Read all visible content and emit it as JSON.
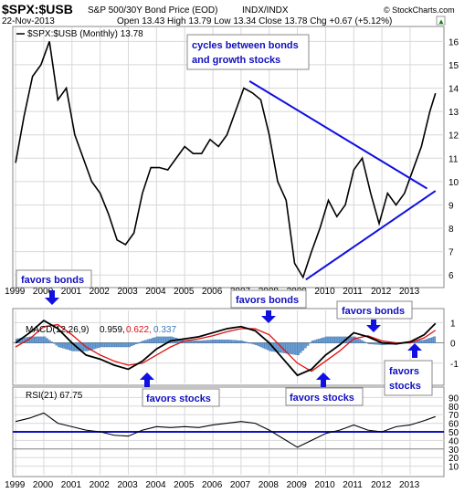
{
  "header": {
    "symbol": "$SPX:$USB",
    "description": "S&P 500/30Y Bond Price (EOD)",
    "exchange": "INDX/INDX",
    "date": "22-Nov-2013",
    "ohlc": "Open 13.43  High 13.79  Low 13.34  Close 13.78  Chg +0.67 (+5.12%)",
    "credit": "© StockCharts.com",
    "arrow": "▲"
  },
  "legends": {
    "price": "$SPX:$USB (Monthly) 13.78",
    "macd_label": "MACD(12,26,9)",
    "macd_v1": "0.959,",
    "macd_v2": "0.622,",
    "macd_v3": "0.337",
    "rsi": "RSI(21) 67.75"
  },
  "annotations": {
    "cycles": [
      "cycles between bonds",
      "and growth stocks"
    ],
    "favors_bonds_1": "favors bonds",
    "favors_bonds_2": "favors bonds",
    "favors_bonds_3": "favors bonds",
    "favors_stocks_1": "favors stocks",
    "favors_stocks_2": "favors stocks",
    "favors_stocks_3": [
      "favors",
      "stocks"
    ]
  },
  "colors": {
    "price": "#000000",
    "trendline": "#1010e0",
    "macd_signal": "#e01010",
    "histogram": "#6aa0d8",
    "rsi_line": "#1010c0",
    "grid": "#d8d8d8",
    "annotation_text": "#1010c0"
  },
  "chart_data": [
    {
      "type": "line",
      "title": "$SPX:$USB (Monthly) 13.78",
      "x": [
        "1999.0",
        "1999.3",
        "1999.6",
        "1999.9",
        "2000.2",
        "2000.5",
        "2000.8",
        "2001.1",
        "2001.4",
        "2001.7",
        "2002.0",
        "2002.3",
        "2002.6",
        "2002.9",
        "2003.2",
        "2003.5",
        "2003.8",
        "2004.1",
        "2004.4",
        "2004.7",
        "2005.0",
        "2005.3",
        "2005.6",
        "2005.9",
        "2006.2",
        "2006.5",
        "2006.8",
        "2007.1",
        "2007.4",
        "2007.7",
        "2008.0",
        "2008.3",
        "2008.6",
        "2008.9",
        "2009.2",
        "2009.5",
        "2009.8",
        "2010.1",
        "2010.4",
        "2010.7",
        "2011.0",
        "2011.3",
        "2011.6",
        "2011.9",
        "2012.2",
        "2012.5",
        "2012.8",
        "2013.1",
        "2013.4",
        "2013.7",
        "2013.9"
      ],
      "y": [
        10.8,
        12.8,
        14.5,
        15.0,
        16.0,
        13.5,
        14.0,
        12.0,
        11.0,
        10.0,
        9.5,
        8.6,
        7.5,
        7.3,
        7.8,
        9.5,
        10.6,
        10.6,
        10.5,
        11.0,
        11.5,
        11.2,
        11.2,
        11.8,
        11.5,
        12.0,
        13.0,
        14.0,
        13.8,
        13.5,
        12.0,
        10.0,
        9.2,
        6.5,
        5.9,
        7.0,
        8.0,
        9.2,
        8.5,
        9.0,
        10.5,
        11.0,
        9.5,
        8.2,
        9.5,
        9.0,
        9.5,
        10.5,
        11.5,
        13.0,
        13.78
      ],
      "ylim": [
        5.5,
        16.6
      ],
      "yticks": [
        6,
        7,
        8,
        9,
        10,
        11,
        12,
        13,
        14,
        15,
        16
      ],
      "xtick_labels": [
        "1999",
        "2000",
        "2001",
        "2002",
        "2003",
        "2004",
        "2005",
        "2006",
        "2007",
        "2008",
        "2009",
        "2010",
        "2011",
        "2012",
        "2013"
      ],
      "trendlines": [
        {
          "from": [
            "2007.3",
            14.3
          ],
          "to": [
            "2013.6",
            9.7
          ]
        },
        {
          "from": [
            "2009.3",
            5.8
          ],
          "to": [
            "2013.9",
            9.6
          ]
        }
      ]
    },
    {
      "type": "line",
      "title": "MACD(12,26,9) 0.959, 0.622, 0.337",
      "series": [
        {
          "name": "MACD",
          "x": [
            "1999.0",
            "1999.5",
            "2000.0",
            "2000.5",
            "2001.0",
            "2001.5",
            "2002.0",
            "2002.5",
            "2003.0",
            "2003.5",
            "2004.0",
            "2004.5",
            "2005.0",
            "2005.5",
            "2006.0",
            "2006.5",
            "2007.0",
            "2007.5",
            "2008.0",
            "2008.5",
            "2009.0",
            "2009.5",
            "2010.0",
            "2010.5",
            "2011.0",
            "2011.5",
            "2012.0",
            "2012.5",
            "2013.0",
            "2013.5",
            "2013.9"
          ],
          "values": [
            0.0,
            0.5,
            1.1,
            0.7,
            0.0,
            -0.6,
            -0.8,
            -1.1,
            -1.3,
            -0.9,
            -0.3,
            0.1,
            0.2,
            0.3,
            0.5,
            0.7,
            0.8,
            0.6,
            0.0,
            -0.8,
            -1.6,
            -1.3,
            -0.6,
            -0.1,
            0.5,
            0.3,
            0.0,
            -0.05,
            0.05,
            0.4,
            0.959
          ]
        },
        {
          "name": "Signal",
          "x": [
            "1999.0",
            "1999.5",
            "2000.0",
            "2000.5",
            "2001.0",
            "2001.5",
            "2002.0",
            "2002.5",
            "2003.0",
            "2003.5",
            "2004.0",
            "2004.5",
            "2005.0",
            "2005.5",
            "2006.0",
            "2006.5",
            "2007.0",
            "2007.5",
            "2008.0",
            "2008.5",
            "2009.0",
            "2009.5",
            "2010.0",
            "2010.5",
            "2011.0",
            "2011.5",
            "2012.0",
            "2012.5",
            "2013.0",
            "2013.5",
            "2013.9"
          ],
          "values": [
            -0.2,
            0.2,
            0.8,
            0.9,
            0.4,
            -0.2,
            -0.6,
            -0.9,
            -1.1,
            -1.0,
            -0.6,
            -0.2,
            0.1,
            0.2,
            0.35,
            0.55,
            0.7,
            0.7,
            0.4,
            -0.3,
            -1.0,
            -1.4,
            -0.9,
            -0.4,
            0.2,
            0.35,
            0.1,
            0.0,
            0.0,
            0.25,
            0.622
          ]
        }
      ],
      "histogram_label": "0.337",
      "ylim": [
        -2,
        1.6
      ],
      "yticks": [
        -1,
        0,
        1
      ]
    },
    {
      "type": "line",
      "title": "RSI(21) 67.75",
      "x": [
        "1999.0",
        "1999.5",
        "2000.0",
        "2000.5",
        "2001.0",
        "2001.5",
        "2002.0",
        "2002.5",
        "2003.0",
        "2003.5",
        "2004.0",
        "2004.5",
        "2005.0",
        "2005.5",
        "2006.0",
        "2006.5",
        "2007.0",
        "2007.5",
        "2008.0",
        "2008.5",
        "2009.0",
        "2009.5",
        "2010.0",
        "2010.5",
        "2011.0",
        "2011.5",
        "2012.0",
        "2012.5",
        "2013.0",
        "2013.5",
        "2013.9"
      ],
      "y": [
        62,
        66,
        72,
        60,
        56,
        52,
        50,
        46,
        45,
        52,
        56,
        55,
        56,
        55,
        58,
        60,
        62,
        60,
        52,
        42,
        32,
        40,
        48,
        52,
        58,
        52,
        50,
        56,
        58,
        63,
        67.75
      ],
      "ylim": [
        0,
        100
      ],
      "yticks": [
        10,
        20,
        30,
        40,
        50,
        60,
        70,
        80,
        90
      ],
      "reference_lines": [
        50,
        30
      ]
    }
  ]
}
